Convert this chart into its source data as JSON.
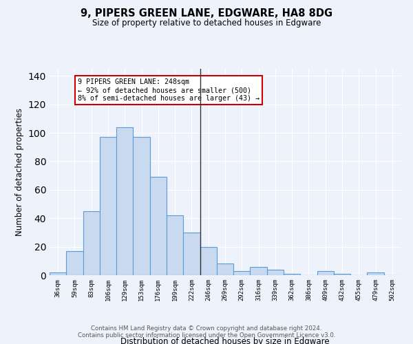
{
  "title": "9, PIPERS GREEN LANE, EDGWARE, HA8 8DG",
  "subtitle": "Size of property relative to detached houses in Edgware",
  "xlabel": "Distribution of detached houses by size in Edgware",
  "ylabel": "Number of detached properties",
  "categories": [
    "36sqm",
    "59sqm",
    "83sqm",
    "106sqm",
    "129sqm",
    "153sqm",
    "176sqm",
    "199sqm",
    "222sqm",
    "246sqm",
    "269sqm",
    "292sqm",
    "316sqm",
    "339sqm",
    "362sqm",
    "386sqm",
    "409sqm",
    "432sqm",
    "455sqm",
    "479sqm",
    "502sqm"
  ],
  "values": [
    2,
    17,
    45,
    97,
    104,
    97,
    69,
    42,
    30,
    20,
    8,
    3,
    6,
    4,
    1,
    0,
    3,
    1,
    0,
    2,
    0
  ],
  "bar_color": "#c8d9f0",
  "bar_edge_color": "#5b9bd5",
  "background_color": "#eef3fb",
  "grid_color": "#ffffff",
  "vline_x_index": 9,
  "vline_color": "#333333",
  "annotation_text": "9 PIPERS GREEN LANE: 248sqm\n← 92% of detached houses are smaller (500)\n8% of semi-detached houses are larger (43) →",
  "annotation_box_color": "#ffffff",
  "annotation_box_edge": "#cc0000",
  "footer": "Contains HM Land Registry data © Crown copyright and database right 2024.\nContains public sector information licensed under the Open Government Licence v3.0.",
  "ylim": [
    0,
    145
  ],
  "yticks": [
    0,
    20,
    40,
    60,
    80,
    100,
    120,
    140
  ]
}
